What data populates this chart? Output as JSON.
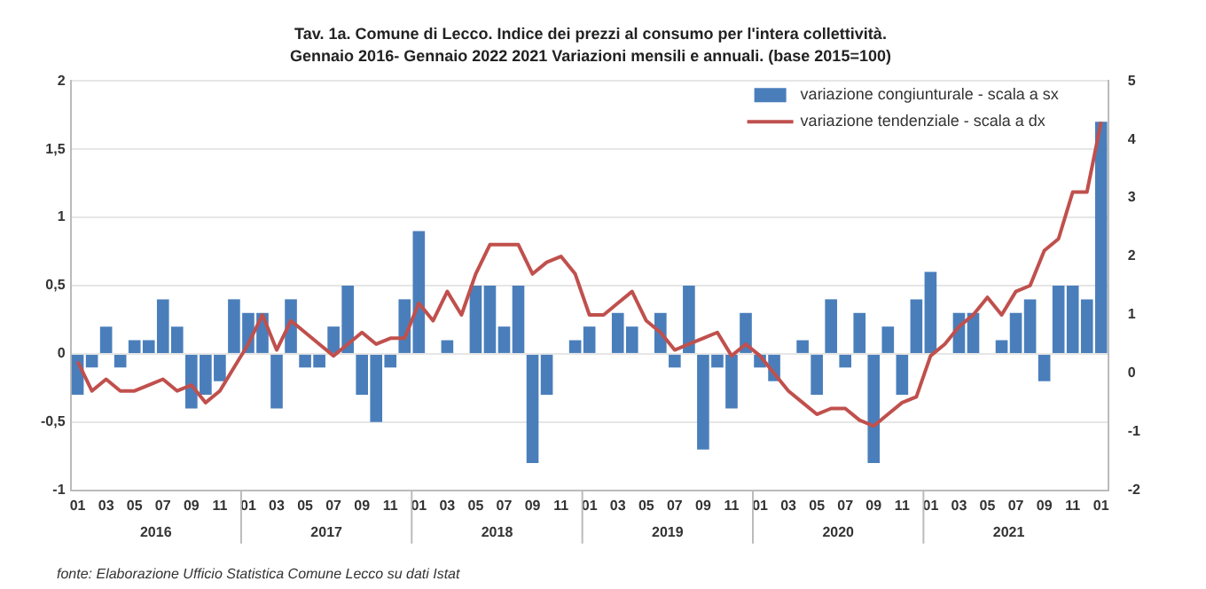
{
  "chart_data": {
    "type": "bar",
    "title": "Tav. 1a. Comune di Lecco. Indice dei prezzi al consumo per l'intera collettività.",
    "subtitle": "Gennaio 2016- Gennaio 2022 2021 Variazioni mensili e annuali. (base 2015=100)",
    "categories": [
      "01",
      null,
      "03",
      null,
      "05",
      null,
      "07",
      null,
      "09",
      null,
      "11",
      null,
      "01",
      null,
      "03",
      null,
      "05",
      null,
      "07",
      null,
      "09",
      null,
      "11",
      null,
      "01",
      null,
      "03",
      null,
      "05",
      null,
      "07",
      null,
      "09",
      null,
      "11",
      null,
      "01",
      null,
      "03",
      null,
      "05",
      null,
      "07",
      null,
      "09",
      null,
      "11",
      null,
      "01",
      null,
      "03",
      null,
      "05",
      null,
      "07",
      null,
      "09",
      null,
      "11",
      null,
      "01",
      null,
      "03",
      null,
      "05",
      null,
      "07",
      null,
      "09",
      null,
      "11",
      null,
      "01"
    ],
    "series": [
      {
        "name": "variazione congiunturale - scala a sx",
        "color": "#4a7ebb",
        "values": [
          -0.3,
          -0.1,
          0.2,
          -0.1,
          0.1,
          0.1,
          0.4,
          0.2,
          -0.4,
          -0.3,
          -0.2,
          0.4,
          0.3,
          0.3,
          -0.4,
          0.4,
          -0.1,
          -0.1,
          0.2,
          0.5,
          -0.3,
          -0.5,
          -0.1,
          0.4,
          0.9,
          0,
          0.1,
          0,
          0.5,
          0.5,
          0.2,
          0.5,
          -0.8,
          -0.3,
          0,
          0.1,
          0.2,
          0,
          0.3,
          0.2,
          0,
          0.3,
          -0.1,
          0.5,
          -0.7,
          -0.1,
          -0.4,
          0.3,
          -0.1,
          -0.2,
          0,
          0.1,
          -0.3,
          0.4,
          -0.1,
          0.3,
          -0.8,
          0.2,
          -0.3,
          0.4,
          0.6,
          0,
          0.3,
          0.3,
          0,
          0.1,
          0.3,
          0.4,
          -0.2,
          0.5,
          0.5,
          0.4,
          1.7
        ]
      },
      {
        "name": "variazione tendenziale - scala a dx",
        "type": "line",
        "axis": "y2",
        "color": "#c0504d",
        "values": [
          0.2,
          -0.3,
          -0.1,
          -0.3,
          -0.3,
          -0.2,
          -0.1,
          -0.3,
          -0.2,
          -0.5,
          -0.3,
          0.1,
          0.5,
          1.0,
          0.4,
          0.9,
          0.7,
          0.5,
          0.3,
          0.5,
          0.7,
          0.5,
          0.6,
          0.6,
          1.2,
          0.9,
          1.4,
          1.0,
          1.7,
          2.2,
          2.2,
          2.2,
          1.7,
          1.9,
          2.0,
          1.7,
          1.0,
          1.0,
          1.2,
          1.4,
          0.9,
          0.7,
          0.4,
          0.5,
          0.6,
          0.7,
          0.3,
          0.5,
          0.3,
          0.0,
          -0.3,
          -0.5,
          -0.7,
          -0.6,
          -0.6,
          -0.8,
          -0.9,
          -0.7,
          -0.5,
          -0.4,
          0.3,
          0.5,
          0.8,
          1.0,
          1.3,
          1.0,
          1.4,
          1.5,
          2.1,
          2.3,
          3.1,
          3.1,
          4.3
        ]
      }
    ],
    "ylim": [
      -1,
      2
    ],
    "yticks": [
      {
        "value": -1,
        "label": "-1"
      },
      {
        "value": -0.5,
        "label": "-0,5"
      },
      {
        "value": 0,
        "label": "0"
      },
      {
        "value": 0.5,
        "label": "0,5"
      },
      {
        "value": 1,
        "label": "1"
      },
      {
        "value": 1.5,
        "label": "1,5"
      },
      {
        "value": 2,
        "label": "2"
      }
    ],
    "y2lim": [
      -2,
      5
    ],
    "y2ticks": [
      -2,
      -1,
      0,
      1,
      2,
      3,
      4,
      5
    ],
    "grid": "y",
    "legend": "top right",
    "marker": "none",
    "line_style": "solid",
    "annotations": [
      "2016",
      "2017",
      "2018",
      "2019",
      "2020",
      "2021",
      "fonte: Elaborazione Ufficio Statistica Comune Lecco su dati Istat"
    ]
  }
}
